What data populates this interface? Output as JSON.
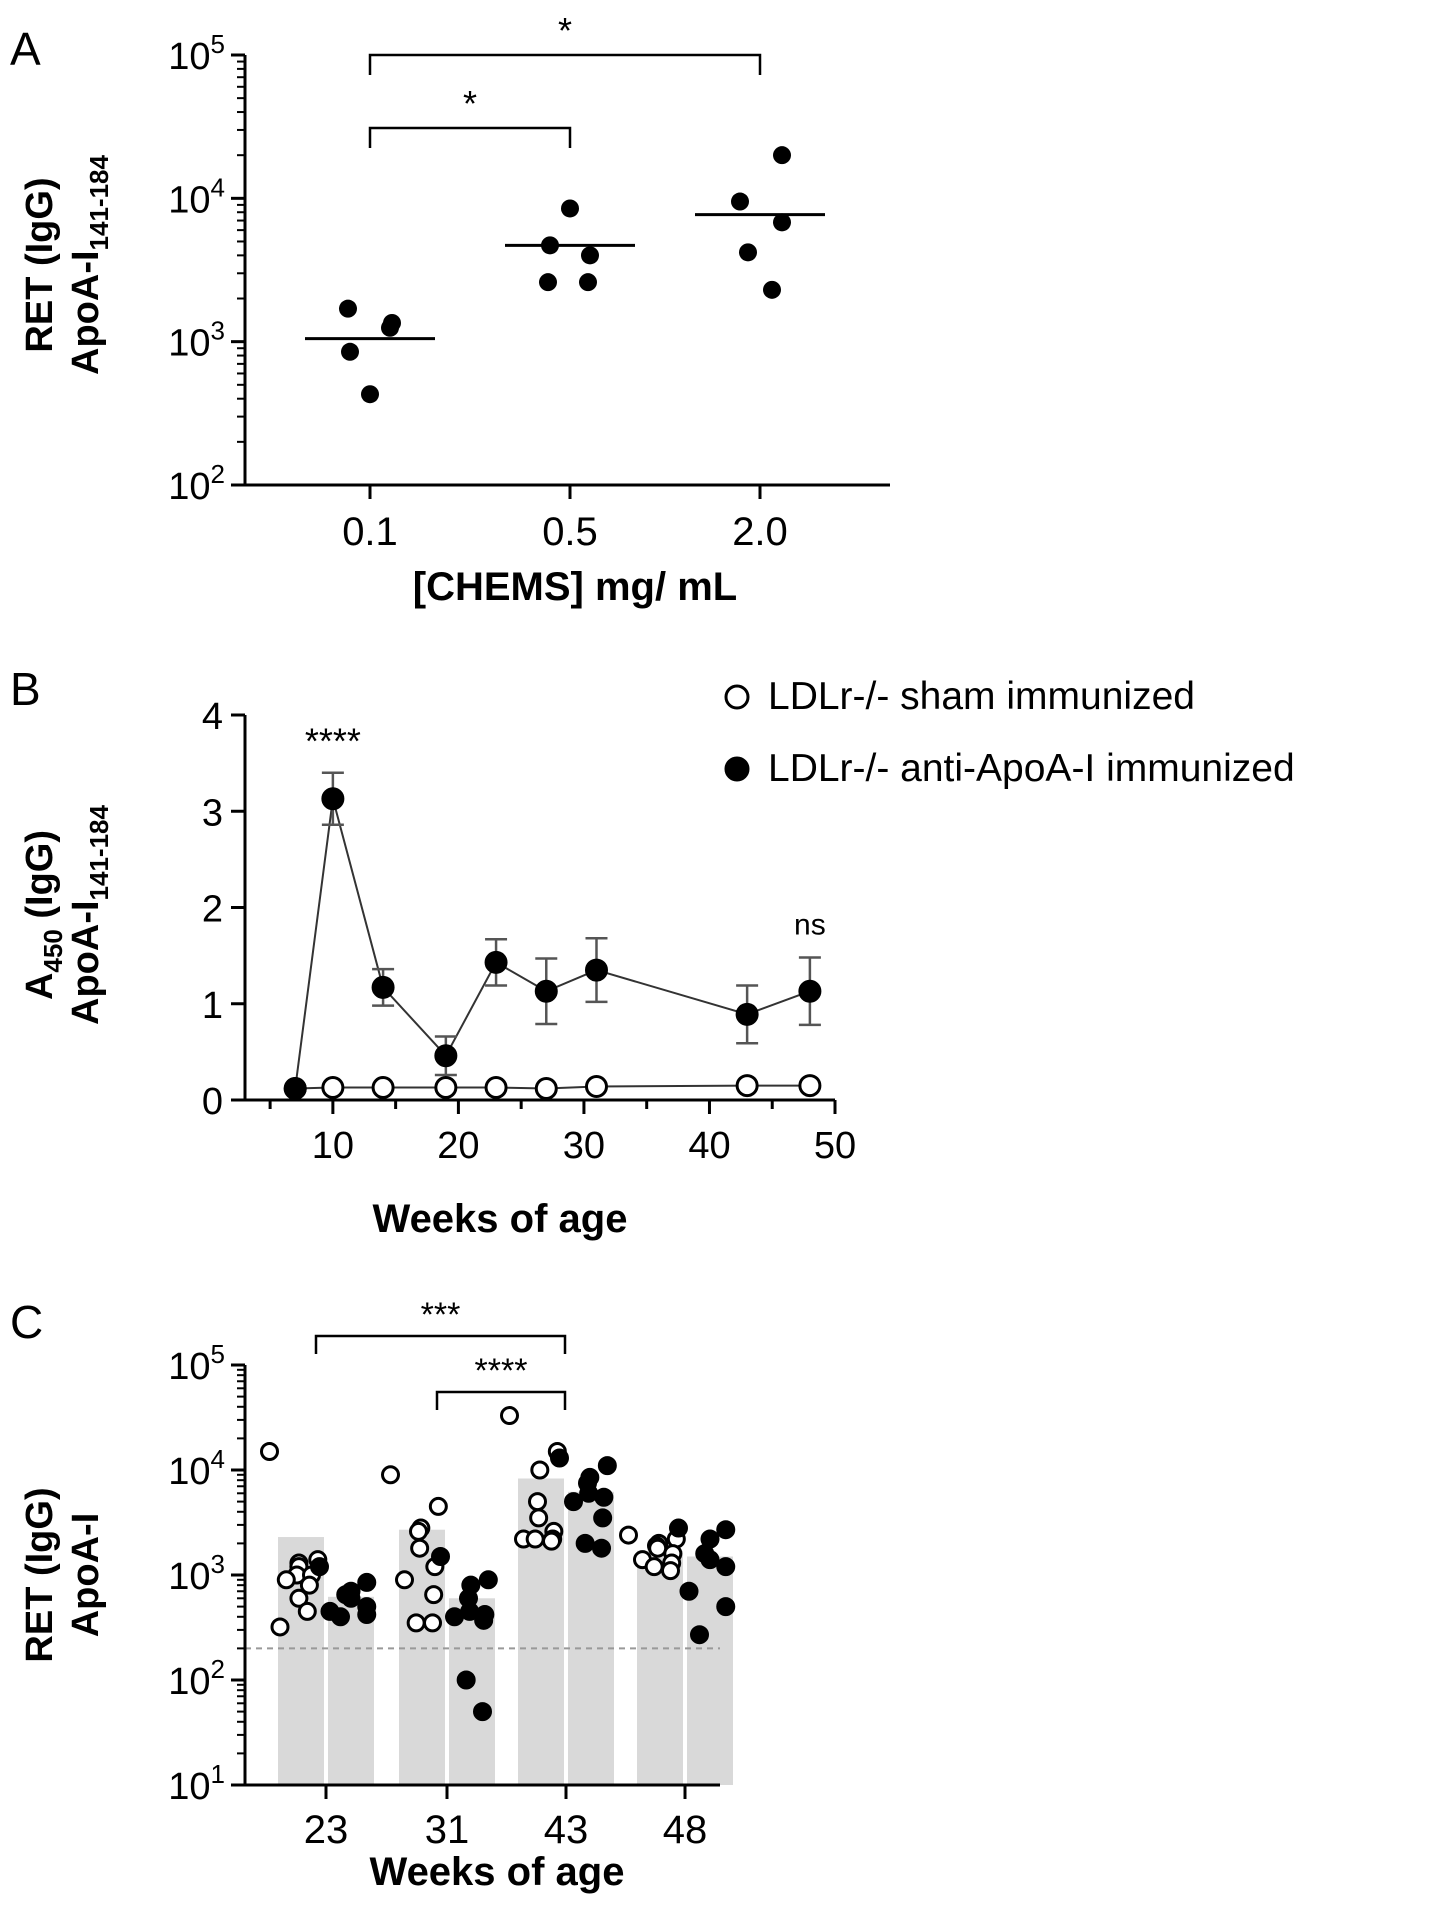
{
  "colors": {
    "ink": "#000000",
    "bar": "#d9d9d9",
    "dash": "#999999",
    "errorbar": "#555555",
    "line": "#333333"
  },
  "chart_data": [
    {
      "panel": "A",
      "type": "scatter",
      "yscale": "log",
      "ylim": [
        100,
        100000
      ],
      "yticks": [
        {
          "value": 100,
          "base": "10",
          "exp": "2"
        },
        {
          "value": 1000,
          "base": "10",
          "exp": "3"
        },
        {
          "value": 10000,
          "base": "10",
          "exp": "4"
        },
        {
          "value": 100000,
          "base": "10",
          "exp": "5"
        }
      ],
      "categories": [
        "0.1",
        "0.5",
        "2.0"
      ],
      "xlabel": "[CHEMS] mg/ mL",
      "ylabel_line1": "RET (IgG)",
      "ylabel_line2_main": "ApoA-I",
      "ylabel_line2_sub": "141-184",
      "groups": [
        {
          "category": "0.1",
          "points": [
            1700,
            1350,
            1250,
            850,
            430
          ],
          "median": 1050
        },
        {
          "category": "0.5",
          "points": [
            8500,
            4700,
            4000,
            2600,
            2600
          ],
          "median": 4700
        },
        {
          "category": "2.0",
          "points": [
            20000,
            9500,
            6800,
            4200,
            2300
          ],
          "median": 7700
        }
      ],
      "comparisons": [
        {
          "from": "0.1",
          "to": "0.5",
          "label": "*"
        },
        {
          "from": "0.1",
          "to": "2.0",
          "label": "*"
        }
      ]
    },
    {
      "panel": "B",
      "type": "line",
      "xlim": [
        3,
        50
      ],
      "ylim": [
        0,
        4
      ],
      "xticks": [
        "10",
        "20",
        "30",
        "40",
        "50"
      ],
      "yticks": [
        "0",
        "1",
        "2",
        "3",
        "4"
      ],
      "xlabel": "Weeks of age",
      "ylabel_line1_main": "A",
      "ylabel_line1_sub": "450",
      "ylabel_line1_rest": " (IgG)",
      "ylabel_line2_main": "ApoA-I",
      "ylabel_line2_sub": "141-184",
      "series": [
        {
          "name": "LDLr-/- sham immunized",
          "marker": "open",
          "x": [
            7,
            10,
            14,
            19,
            23,
            27,
            31,
            43,
            48
          ],
          "y": [
            0.12,
            0.13,
            0.13,
            0.13,
            0.13,
            0.12,
            0.14,
            0.15,
            0.15
          ],
          "err": [
            0,
            0,
            0,
            0,
            0,
            0,
            0,
            0,
            0
          ]
        },
        {
          "name": "LDLr-/- anti-ApoA-I immunized",
          "marker": "filled",
          "x": [
            7,
            10,
            14,
            19,
            23,
            27,
            31,
            43,
            48
          ],
          "y": [
            0.12,
            3.13,
            1.17,
            0.46,
            1.43,
            1.13,
            1.35,
            0.89,
            1.13
          ],
          "err": [
            0,
            0.27,
            0.19,
            0.2,
            0.24,
            0.34,
            0.33,
            0.3,
            0.35
          ]
        }
      ],
      "annotations": [
        {
          "x": 10,
          "y": 3.6,
          "text": "****"
        },
        {
          "x": 48,
          "y": 1.72,
          "text": "ns"
        }
      ]
    },
    {
      "panel": "C",
      "type": "bar",
      "yscale": "log",
      "ylim": [
        10,
        100000
      ],
      "yticks": [
        {
          "value": 10,
          "base": "10",
          "exp": "1"
        },
        {
          "value": 100,
          "base": "10",
          "exp": "2"
        },
        {
          "value": 1000,
          "base": "10",
          "exp": "3"
        },
        {
          "value": 10000,
          "base": "10",
          "exp": "4"
        },
        {
          "value": 100000,
          "base": "10",
          "exp": "5"
        }
      ],
      "categories": [
        "23",
        "31",
        "43",
        "48"
      ],
      "xlabel": "Weeks of age",
      "ylabel_line1": "RET (IgG)",
      "ylabel_line2": "ApoA-I",
      "threshold": 200,
      "series": [
        {
          "name": "sham",
          "marker": "open",
          "bars": [
            2300,
            2700,
            8300,
            1700
          ],
          "points": [
            [
              15000,
              1400,
              1300,
              1200,
              1000,
              1000,
              900,
              800,
              600,
              450,
              320
            ],
            [
              9000,
              4500,
              2800,
              2600,
              1800,
              1200,
              900,
              650,
              350,
              350
            ],
            [
              33000,
              15000,
              10000,
              5000,
              3500,
              2600,
              2200,
              2200,
              2200,
              2100
            ],
            [
              2400,
              2200,
              2000,
              1900,
              1800,
              1600,
              1400,
              1300,
              1200,
              1100
            ]
          ]
        },
        {
          "name": "anti-ApoA-I",
          "marker": "filled",
          "bars": [
            620,
            600,
            6200,
            1500
          ],
          "points": [
            [
              1200,
              850,
              700,
              650,
              600,
              500,
              450,
              420,
              400
            ],
            [
              1500,
              900,
              800,
              600,
              450,
              420,
              400,
              370,
              100,
              50
            ],
            [
              13000,
              11000,
              8500,
              7500,
              6000,
              5500,
              5000,
              3500,
              2000,
              1800
            ],
            [
              2800,
              2700,
              2200,
              1600,
              1400,
              1200,
              700,
              500,
              270
            ]
          ]
        }
      ],
      "comparisons": [
        {
          "from": "23",
          "to": "43",
          "label": "***"
        },
        {
          "from": "31",
          "to": "43",
          "label": "****"
        }
      ]
    }
  ],
  "panels": {
    "a": "A",
    "b": "B",
    "c": "C"
  },
  "legend": {
    "sham": "LDLr-/- sham immunized",
    "immunized": "LDLr-/- anti-ApoA-I immunized"
  }
}
